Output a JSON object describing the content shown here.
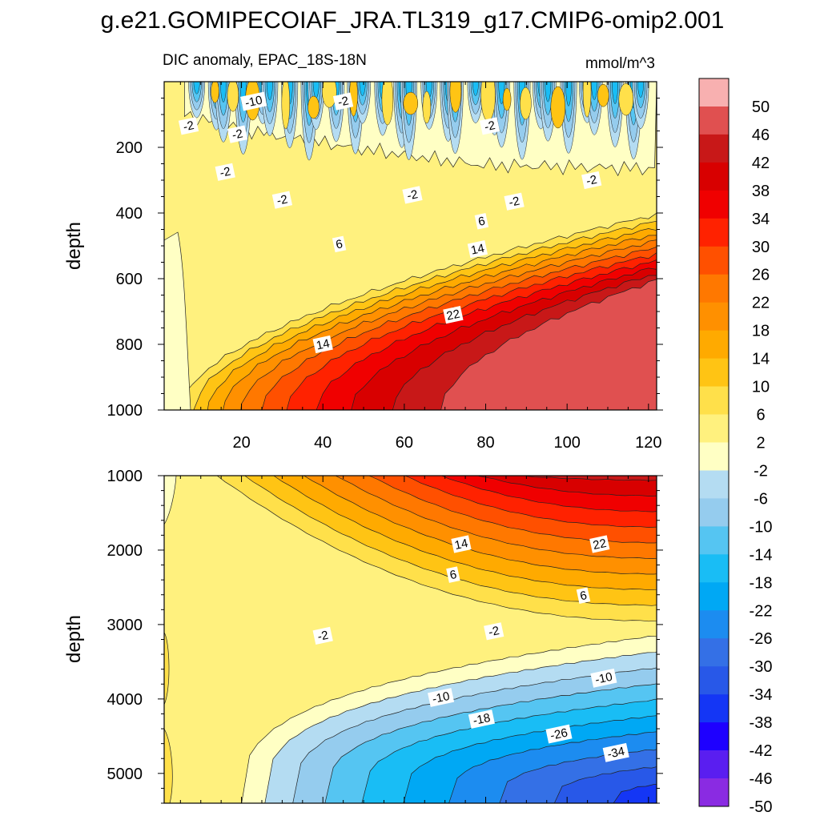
{
  "figure_title": "g.e21.GOMIPECOIAF_JRA.TL319_g17.CMIP6-omip2.001",
  "colors": {
    "palette": [
      "#8a2be2",
      "#5a1ef0",
      "#1e00ff",
      "#1436f5",
      "#2858e8",
      "#3470e6",
      "#1c8cf0",
      "#00a8f4",
      "#19bdf5",
      "#55c5f2",
      "#95ccee",
      "#b4dcf2",
      "#ffffc4",
      "#fff17e",
      "#ffe04a",
      "#ffc414",
      "#ffaa00",
      "#ff9000",
      "#ff7800",
      "#ff5000",
      "#ff2200",
      "#f00000",
      "#d80000",
      "#c81818",
      "#e05050",
      "#f8b0b0"
    ]
  },
  "chart_data": {
    "type": "contour",
    "subtitle": "DIC anomaly, EPAC_18S-18N",
    "units": "mmol/m^3",
    "colorbar": {
      "labels": [
        "50",
        "46",
        "42",
        "38",
        "34",
        "30",
        "26",
        "22",
        "18",
        "14",
        "10",
        "6",
        "2",
        "-2",
        "-6",
        "-10",
        "-14",
        "-18",
        "-22",
        "-26",
        "-30",
        "-34",
        "-38",
        "-42",
        "-46",
        "-50"
      ],
      "levels": [
        -50,
        -46,
        -42,
        -38,
        -34,
        -30,
        -26,
        -22,
        -18,
        -14,
        -10,
        -6,
        -2,
        2,
        6,
        10,
        14,
        18,
        22,
        26,
        30,
        34,
        38,
        42,
        46,
        50
      ]
    },
    "x": {
      "range": [
        1,
        122
      ],
      "tick_labels": [
        "20",
        "40",
        "60",
        "80",
        "100",
        "120"
      ],
      "tick_values": [
        20,
        40,
        60,
        80,
        100,
        120
      ]
    },
    "panels": [
      {
        "name": "upper",
        "ylabel": "depth",
        "yrange": [
          0,
          1000
        ],
        "tick_labels": [
          "200",
          "400",
          "600",
          "800",
          "1000"
        ],
        "tick_values": [
          200,
          400,
          600,
          800,
          1000
        ],
        "contour_labels": [
          {
            "text": "-10",
            "x": 23,
            "y": 60
          },
          {
            "text": "-2",
            "x": 45,
            "y": 60
          },
          {
            "text": "-2",
            "x": 7,
            "y": 135
          },
          {
            "text": "-2",
            "x": 19,
            "y": 160
          },
          {
            "text": "-2",
            "x": 81,
            "y": 135
          },
          {
            "text": "-2",
            "x": 16,
            "y": 275
          },
          {
            "text": "-2",
            "x": 30,
            "y": 360
          },
          {
            "text": "-2",
            "x": 62,
            "y": 345
          },
          {
            "text": "-2",
            "x": 87,
            "y": 365
          },
          {
            "text": "-2",
            "x": 106,
            "y": 300
          },
          {
            "text": "6",
            "x": 79,
            "y": 425
          },
          {
            "text": "6",
            "x": 44,
            "y": 495
          },
          {
            "text": "14",
            "x": 78,
            "y": 510
          },
          {
            "text": "22",
            "x": 72,
            "y": 710
          },
          {
            "text": "14",
            "x": 40,
            "y": 800
          }
        ]
      },
      {
        "name": "lower",
        "ylabel": "depth",
        "yrange": [
          1000,
          5400
        ],
        "tick_labels": [
          "1000",
          "2000",
          "3000",
          "4000",
          "5000"
        ],
        "tick_values": [
          1000,
          2000,
          3000,
          4000,
          5000
        ],
        "contour_labels": [
          {
            "text": "14",
            "x": 74,
            "y": 1920
          },
          {
            "text": "22",
            "x": 108,
            "y": 1920
          },
          {
            "text": "6",
            "x": 72,
            "y": 2330
          },
          {
            "text": "6",
            "x": 104,
            "y": 2610
          },
          {
            "text": "-2",
            "x": 40,
            "y": 3150
          },
          {
            "text": "-2",
            "x": 82,
            "y": 3090
          },
          {
            "text": "-10",
            "x": 109,
            "y": 3720
          },
          {
            "text": "-10",
            "x": 69,
            "y": 3980
          },
          {
            "text": "-18",
            "x": 79,
            "y": 4270
          },
          {
            "text": "-26",
            "x": 98,
            "y": 4470
          },
          {
            "text": "-34",
            "x": 112,
            "y": 4720
          }
        ]
      }
    ]
  }
}
